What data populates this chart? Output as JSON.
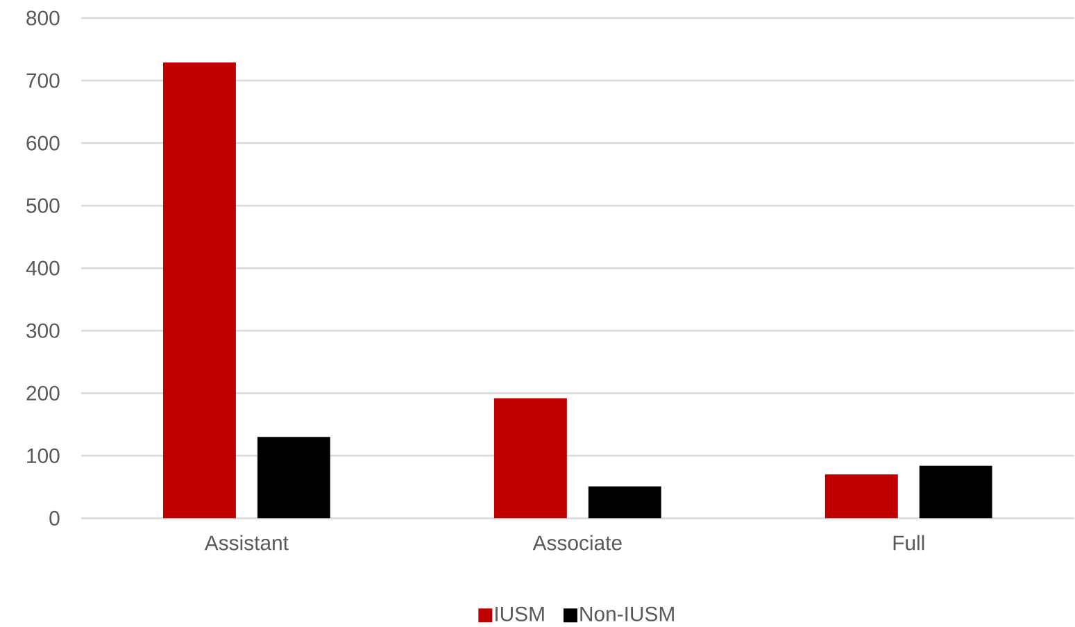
{
  "chart_data": {
    "type": "bar",
    "categories": [
      "Assistant",
      "Associate",
      "Full"
    ],
    "series": [
      {
        "name": "IUSM",
        "color": "#c00000",
        "values": [
          729,
          192,
          70
        ]
      },
      {
        "name": "Non-IUSM",
        "color": "#000000",
        "values": [
          130,
          51,
          84
        ]
      }
    ],
    "ylim": [
      0,
      800
    ],
    "yticks": [
      0,
      100,
      200,
      300,
      400,
      500,
      600,
      700,
      800
    ],
    "grid": "y",
    "legend": "bottom"
  }
}
